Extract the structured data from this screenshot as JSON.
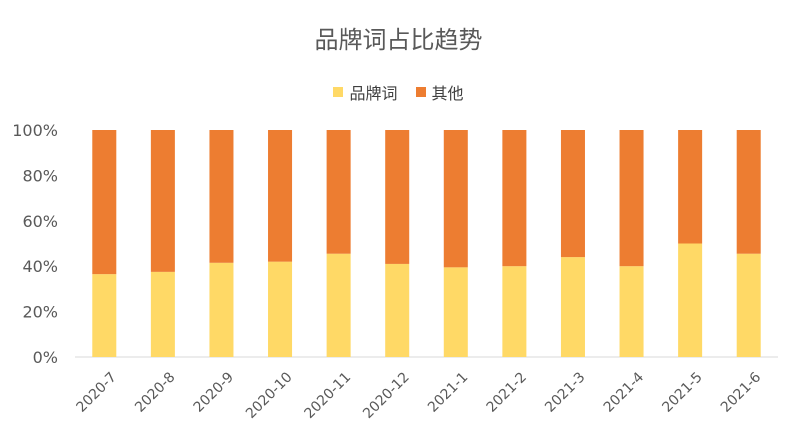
{
  "chart_data": {
    "type": "bar",
    "stacked": true,
    "title": "品牌词占比趋势",
    "categories": [
      "2020-7",
      "2020-8",
      "2020-9",
      "2020-10",
      "2020-11",
      "2020-12",
      "2021-1",
      "2021-2",
      "2021-3",
      "2021-4",
      "2021-5",
      "2021-6"
    ],
    "series": [
      {
        "name": "品牌词",
        "color": "#FFD966",
        "values": [
          36.5,
          37.5,
          41.5,
          42,
          45.5,
          41,
          39.5,
          40,
          44,
          40,
          50,
          45.5
        ]
      },
      {
        "name": "其他",
        "color": "#ED7D31",
        "values": [
          63.5,
          62.5,
          58.5,
          58,
          54.5,
          59,
          60.5,
          60,
          56,
          60,
          50,
          54.5
        ]
      }
    ],
    "y_ticks": [
      "0%",
      "20%",
      "40%",
      "60%",
      "80%",
      "100%"
    ],
    "ylim": [
      0,
      100
    ],
    "legend_position": "top",
    "grid": false
  }
}
